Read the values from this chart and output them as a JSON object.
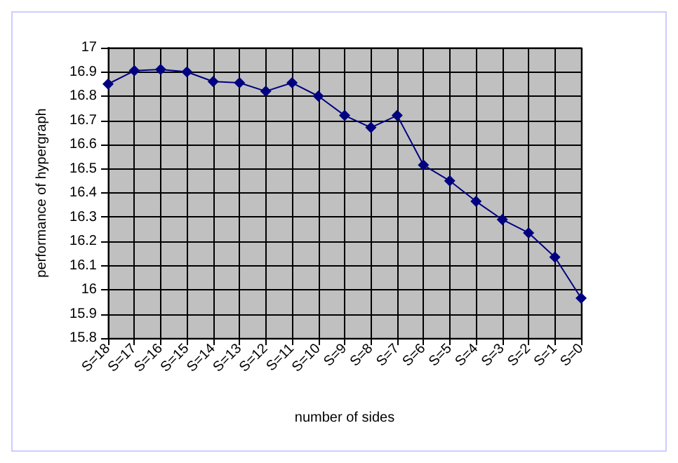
{
  "chart_data": {
    "type": "line",
    "xlabel": "number of sides",
    "ylabel": "performance of hypergraph",
    "categories": [
      "S=18",
      "S=17",
      "S=16",
      "S=15",
      "S=14",
      "S=13",
      "S=12",
      "S=11",
      "S=10",
      "S=9",
      "S=8",
      "S=7",
      "S=6",
      "S=5",
      "S=4",
      "S=3",
      "S=2",
      "S=1",
      "S=0"
    ],
    "series": [
      {
        "color": "#000080",
        "values": [
          16.85,
          16.905,
          16.91,
          16.9,
          16.86,
          16.855,
          16.82,
          16.855,
          16.8,
          16.72,
          16.67,
          16.72,
          16.515,
          16.45,
          16.365,
          16.29,
          16.235,
          16.135,
          15.965
        ]
      }
    ],
    "ylim": [
      15.8,
      17
    ],
    "yticks": [
      15.8,
      15.9,
      16,
      16.1,
      16.2,
      16.3,
      16.4,
      16.5,
      16.6,
      16.7,
      16.8,
      16.9,
      17
    ],
    "grid": true,
    "marker": "diamond",
    "line_style": "solid"
  }
}
